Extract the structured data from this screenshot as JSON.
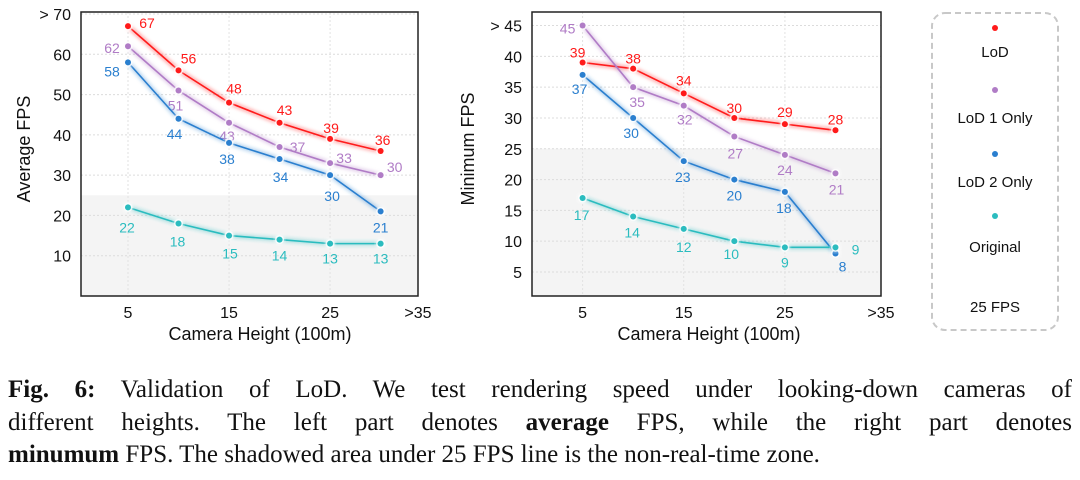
{
  "chart_data": [
    {
      "type": "line",
      "title": "",
      "xlabel": "Camera Height (100m)",
      "ylabel": "Average FPS",
      "x": [
        5,
        10,
        15,
        20,
        25,
        30
      ],
      "xlim": [
        0.35,
        33.7
      ],
      "ylim": [
        0,
        70.5
      ],
      "xticks": [
        {
          "value": 5,
          "label": "5"
        },
        {
          "value": 15,
          "label": "15"
        },
        {
          "value": 25,
          "label": "25"
        },
        {
          "value": 35,
          "label": ">35"
        }
      ],
      "yticks": [
        {
          "value": 70,
          "label": "> 70"
        },
        {
          "value": 60,
          "label": "60"
        },
        {
          "value": 50,
          "label": "50"
        },
        {
          "value": 40,
          "label": "40"
        },
        {
          "value": 30,
          "label": "30"
        },
        {
          "value": 20,
          "label": "20"
        },
        {
          "value": 10,
          "label": "10"
        }
      ],
      "threshold": 25,
      "grid": true,
      "series": [
        {
          "name": "LoD",
          "color": "#ff1a1a",
          "values": [
            67,
            56,
            48,
            43,
            39,
            36
          ],
          "labels": [
            "67",
            "56",
            "48",
            "43",
            "39",
            "36"
          ]
        },
        {
          "name": "LoD 1 Only",
          "color": "#b07cc6",
          "values": [
            62,
            51,
            43,
            37,
            33,
            30
          ],
          "labels": [
            "62",
            "51",
            "43",
            "37",
            "33",
            "30"
          ]
        },
        {
          "name": "LoD 2 Only",
          "color": "#2a7fcf",
          "values": [
            58,
            44,
            38,
            34,
            30,
            21
          ],
          "labels": [
            "58",
            "44",
            "38",
            "34",
            "30",
            "21"
          ]
        },
        {
          "name": "Original",
          "color": "#2bbcbf",
          "values": [
            22,
            18,
            15,
            14,
            13,
            13
          ],
          "labels": [
            "22",
            "18",
            "15",
            "14",
            "13",
            "13"
          ]
        }
      ]
    },
    {
      "type": "line",
      "title": "",
      "xlabel": "Camera Height (100m)",
      "ylabel": "Minimum FPS",
      "x": [
        5,
        10,
        15,
        20,
        25,
        30
      ],
      "xlim": [
        0,
        34.5
      ],
      "ylim": [
        1.1,
        47.2
      ],
      "xticks": [
        {
          "value": 5,
          "label": "5"
        },
        {
          "value": 15,
          "label": "15"
        },
        {
          "value": 25,
          "label": "25"
        },
        {
          "value": 35,
          "label": ">35"
        }
      ],
      "yticks": [
        {
          "value": 45,
          "label": "> 45"
        },
        {
          "value": 40,
          "label": "40"
        },
        {
          "value": 35,
          "label": "35"
        },
        {
          "value": 30,
          "label": "30"
        },
        {
          "value": 25,
          "label": "25"
        },
        {
          "value": 20,
          "label": "20"
        },
        {
          "value": 15,
          "label": "15"
        },
        {
          "value": 10,
          "label": "10"
        },
        {
          "value": 5,
          "label": "5"
        }
      ],
      "threshold": 25,
      "grid": true,
      "series": [
        {
          "name": "LoD",
          "color": "#ff1a1a",
          "values": [
            39,
            38,
            34,
            30,
            29,
            28
          ],
          "labels": [
            "39",
            "38",
            "34",
            "30",
            "29",
            "28"
          ]
        },
        {
          "name": "LoD 1 Only",
          "color": "#b07cc6",
          "values": [
            45,
            35,
            32,
            27,
            24,
            21
          ],
          "labels": [
            "45",
            "35",
            "32",
            "27",
            "24",
            "21"
          ]
        },
        {
          "name": "LoD 2 Only",
          "color": "#2a7fcf",
          "values": [
            37,
            30,
            23,
            20,
            18,
            8
          ],
          "labels": [
            "37",
            "30",
            "23",
            "20",
            "18",
            "8"
          ]
        },
        {
          "name": "Original",
          "color": "#2bbcbf",
          "values": [
            17,
            14,
            12,
            10,
            9,
            9
          ],
          "labels": [
            "17",
            "14",
            "12",
            "10",
            "9",
            "9"
          ]
        }
      ]
    }
  ],
  "legend": {
    "placement": "right",
    "items": [
      {
        "label": "LoD",
        "color": "#ff1a1a",
        "marker": true
      },
      {
        "label": "LoD 1 Only",
        "color": "#b07cc6",
        "marker": true
      },
      {
        "label": "LoD 2 Only",
        "color": "#2a7fcf",
        "marker": true
      },
      {
        "label": "Original",
        "color": "#2bbcbf",
        "marker": true
      },
      {
        "label": "25 FPS",
        "color": "#f7c437",
        "marker": false
      }
    ]
  },
  "shade_color": "#f4f4f4",
  "caption": {
    "fig_label": "Fig. 6:",
    "line1": " Validation of LoD. We test rendering speed under looking-down cameras of",
    "line2a": "different heights. The left part denotes ",
    "bold_average": "average",
    "line2b": " FPS, while the right part denotes",
    "bold_minimum": "minumum",
    "line3": " FPS. The shadowed area under 25 FPS line is the non-real-time zone."
  }
}
